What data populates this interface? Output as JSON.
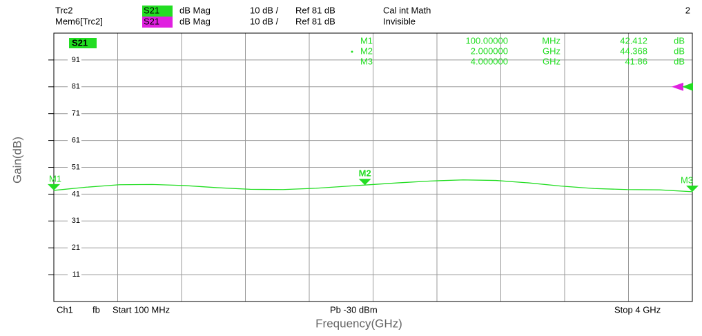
{
  "chart_data": {
    "type": "line",
    "header": [
      {
        "trace": "Trc2",
        "param": "S21",
        "param_color": "#22dd22",
        "format": "dB Mag",
        "scale": "10 dB /",
        "ref": "Ref 81 dB",
        "info": "Cal int Math",
        "window": "2"
      },
      {
        "trace": "Mem6[Trc2]",
        "param": "S21",
        "param_color": "#e020e0",
        "format": "dB Mag",
        "scale": "10 dB /",
        "ref": "Ref 81 dB",
        "info": "Invisible"
      }
    ],
    "trace_label": "S21",
    "x_label": "Frequency(GHz)",
    "y_label": "Gain(dB)",
    "footer": {
      "channel": "Ch1",
      "mode": "fb",
      "start": "Start 100 MHz",
      "power": "Pb -30 dBm",
      "stop": "Stop 4 GHz"
    },
    "xlim": [
      0.1,
      4
    ],
    "ylim": [
      1,
      101
    ],
    "yticks": [
      11,
      21,
      31,
      41,
      51,
      61,
      71,
      81,
      91
    ],
    "grid": true,
    "ref_level": 81,
    "x": [
      0.1,
      0.3,
      0.5,
      0.7,
      0.9,
      1.1,
      1.3,
      1.5,
      1.7,
      1.9,
      2.0,
      2.2,
      2.4,
      2.6,
      2.8,
      3.0,
      3.2,
      3.4,
      3.6,
      3.8,
      4.0
    ],
    "series": [
      {
        "name": "S21",
        "color": "#22dd22",
        "values": [
          42.4,
          43.6,
          44.5,
          44.6,
          44.2,
          43.4,
          42.8,
          42.7,
          43.2,
          44.0,
          44.4,
          45.2,
          45.9,
          46.3,
          46.1,
          45.2,
          44.0,
          43.1,
          42.7,
          42.6,
          41.9
        ]
      }
    ],
    "markers": [
      {
        "label": "M1",
        "x": 0.1,
        "freq_label": "100.00000",
        "freq_unit": "MHz",
        "value": 42.412,
        "unit": "dB"
      },
      {
        "label": "M2",
        "x": 2.0,
        "freq_label": "2.000000",
        "freq_unit": "GHz",
        "value": 44.368,
        "unit": "dB"
      },
      {
        "label": "M3",
        "x": 4.0,
        "freq_label": "4.000000",
        "freq_unit": "GHz",
        "value": 41.86,
        "unit": "dB"
      }
    ]
  }
}
